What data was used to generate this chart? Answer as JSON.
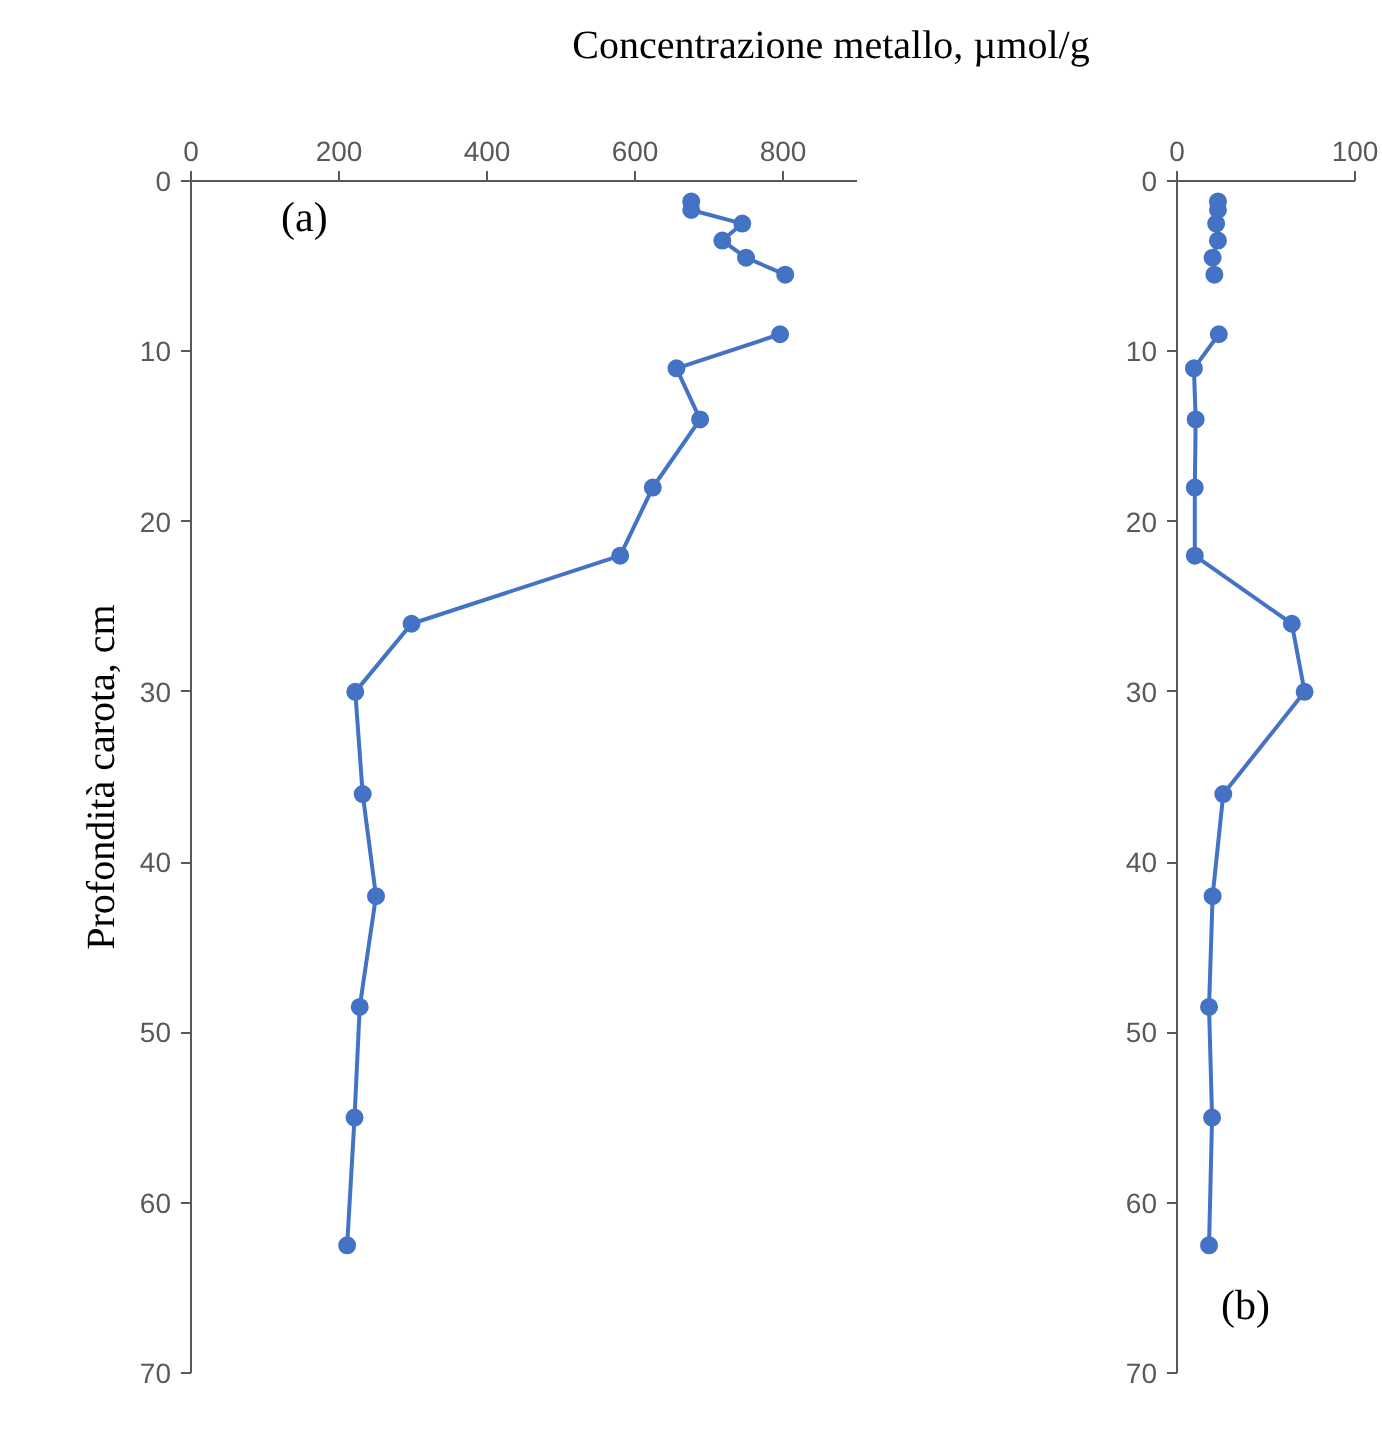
{
  "chart_data": [
    {
      "type": "line",
      "xlabel": "Concentrazione metallo, µmol/g",
      "ylabel": "Profondità carota, cm",
      "annotations": [
        "(a)"
      ],
      "marker": "circle",
      "line_style": "solid",
      "grid": false,
      "xlim": [
        0,
        900
      ],
      "xticks": [
        0,
        200,
        400,
        600,
        800
      ],
      "ylim": [
        70,
        0
      ],
      "yticks": [
        0,
        10,
        20,
        30,
        40,
        50,
        60,
        70
      ],
      "series": [
        {
          "color": "#4472c4",
          "x": [
            676,
            676,
            745,
            718,
            750,
            803,
            null,
            796,
            656,
            688,
            624,
            580,
            298,
            222,
            232,
            250,
            228,
            221,
            211
          ],
          "values": [
            1.2,
            1.7,
            2.5,
            3.5,
            4.5,
            5.5,
            null,
            9,
            11,
            14,
            18,
            22,
            26,
            30,
            36,
            42,
            48.5,
            55,
            62.5
          ]
        }
      ]
    },
    {
      "type": "line",
      "annotations": [
        "(b)"
      ],
      "marker": "circle",
      "line_style": "solid",
      "grid": false,
      "xlim": [
        0,
        100
      ],
      "xticks": [
        0,
        100
      ],
      "ylim": [
        70,
        0
      ],
      "yticks": [
        0,
        10,
        20,
        30,
        40,
        50,
        60,
        70
      ],
      "series": [
        {
          "color": "#4472c4",
          "x": [
            23,
            23,
            22,
            23,
            20,
            21,
            null,
            23.5,
            9.5,
            10.5,
            10,
            10,
            64.5,
            71.7,
            26,
            20,
            18,
            19.7,
            18
          ],
          "values": [
            1.2,
            1.7,
            2.5,
            3.5,
            4.5,
            5.5,
            null,
            9,
            11,
            14,
            18,
            22,
            26,
            30,
            36,
            42,
            48.5,
            55,
            62.5
          ]
        }
      ]
    }
  ]
}
